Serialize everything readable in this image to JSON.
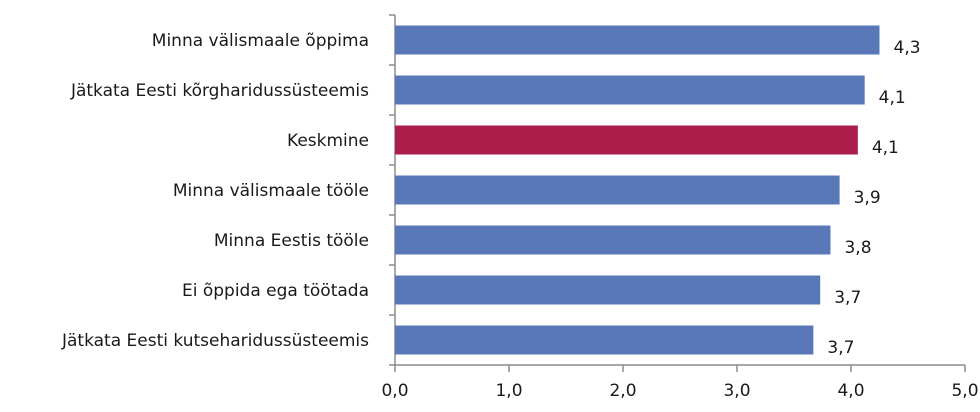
{
  "chart_data": {
    "type": "bar",
    "orientation": "horizontal",
    "categories": [
      "Minna välismaale õppima",
      "Jätkata Eesti kõrgharidussüsteemis",
      "Keskmine",
      "Minna välismaale tööle",
      "Minna Eestis tööle",
      "Ei õppida ega töötada",
      "Jätkata Eesti kutseharidussüsteemis"
    ],
    "values": [
      4.25,
      4.12,
      4.06,
      3.9,
      3.82,
      3.73,
      3.67
    ],
    "value_labels": [
      "4,3",
      "4,1",
      "4,1",
      "3,9",
      "3,8",
      "3,7",
      "3,7"
    ],
    "highlight_category": "Keskmine",
    "colors": {
      "bar": "#5878b8",
      "highlight": "#ab1e4b",
      "axis": "#8c8c8c"
    },
    "xlim": [
      0,
      5
    ],
    "xticks": [
      0,
      1,
      2,
      3,
      4,
      5
    ],
    "xtick_labels": [
      "0,0",
      "1,0",
      "2,0",
      "3,0",
      "4,0",
      "5,0"
    ],
    "grid": false,
    "legend": "none"
  }
}
